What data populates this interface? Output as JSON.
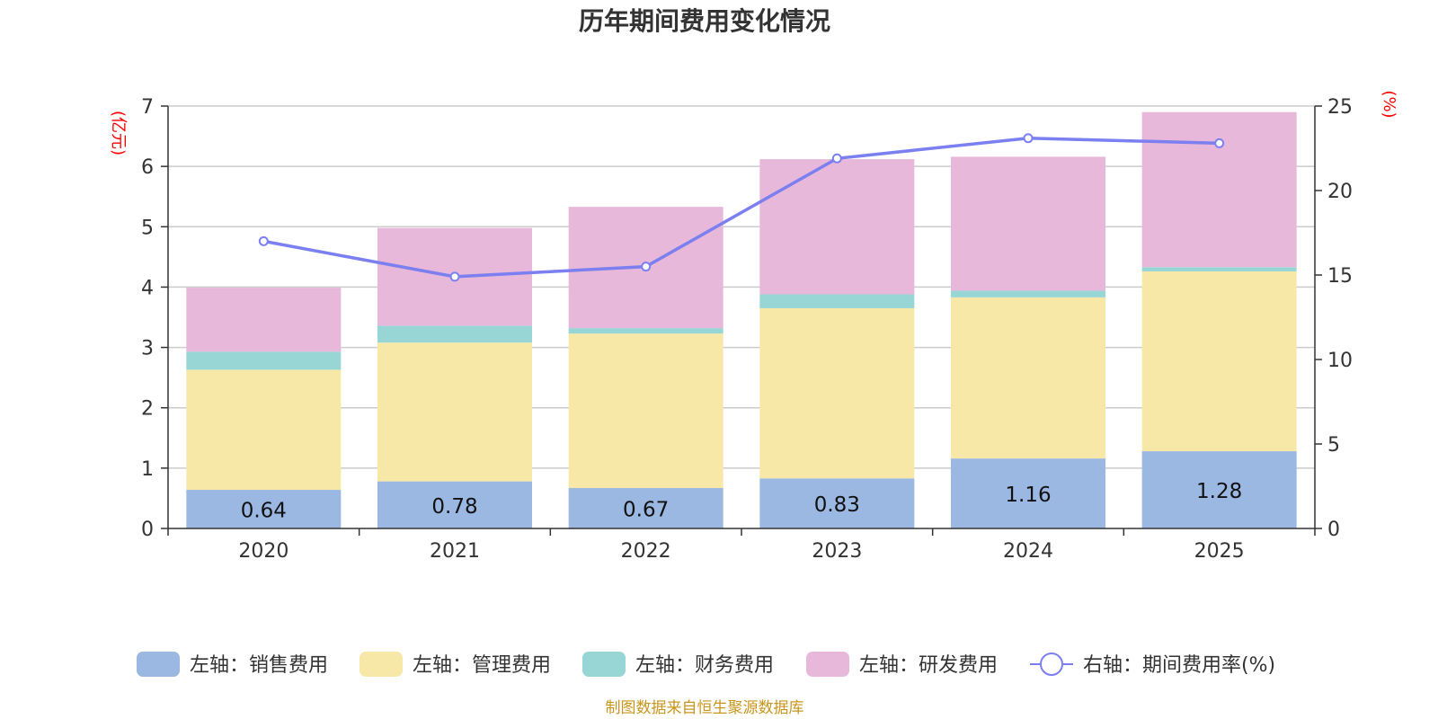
{
  "chart_data": {
    "type": "bar",
    "stacked": true,
    "title": "历年期间费用变化情况",
    "categories": [
      "2020",
      "2021",
      "2022",
      "2023",
      "2024",
      "2025"
    ],
    "left_axis": {
      "unit": "(亿元)",
      "ylim": [
        0,
        7
      ],
      "ticks": [
        0,
        1,
        2,
        3,
        4,
        5,
        6,
        7
      ]
    },
    "right_axis": {
      "unit": "(%)",
      "ylim": [
        0,
        25
      ],
      "ticks": [
        0,
        5,
        10,
        15,
        20,
        25
      ]
    },
    "series": [
      {
        "name": "左轴：销售费用",
        "axis": "left",
        "color": "#9bb8e3",
        "values": [
          0.64,
          0.78,
          0.67,
          0.83,
          1.16,
          1.28
        ],
        "show_labels": true
      },
      {
        "name": "左轴：管理费用",
        "axis": "left",
        "color": "#f8e8a8",
        "values": [
          1.99,
          2.3,
          2.56,
          2.82,
          2.67,
          2.98
        ]
      },
      {
        "name": "左轴：财务费用",
        "axis": "left",
        "color": "#98d5d5",
        "values": [
          0.3,
          0.28,
          0.09,
          0.23,
          0.11,
          0.07
        ]
      },
      {
        "name": "左轴：研发费用",
        "axis": "left",
        "color": "#e8b8da",
        "values": [
          1.06,
          1.62,
          2.01,
          2.24,
          2.22,
          2.57
        ]
      }
    ],
    "line": {
      "name": "右轴：期间费用率(%)",
      "axis": "right",
      "color": "#7b7ff0",
      "values": [
        17.0,
        14.9,
        15.5,
        21.9,
        23.1,
        22.8
      ]
    },
    "source": "制图数据来自恒生聚源数据库"
  }
}
